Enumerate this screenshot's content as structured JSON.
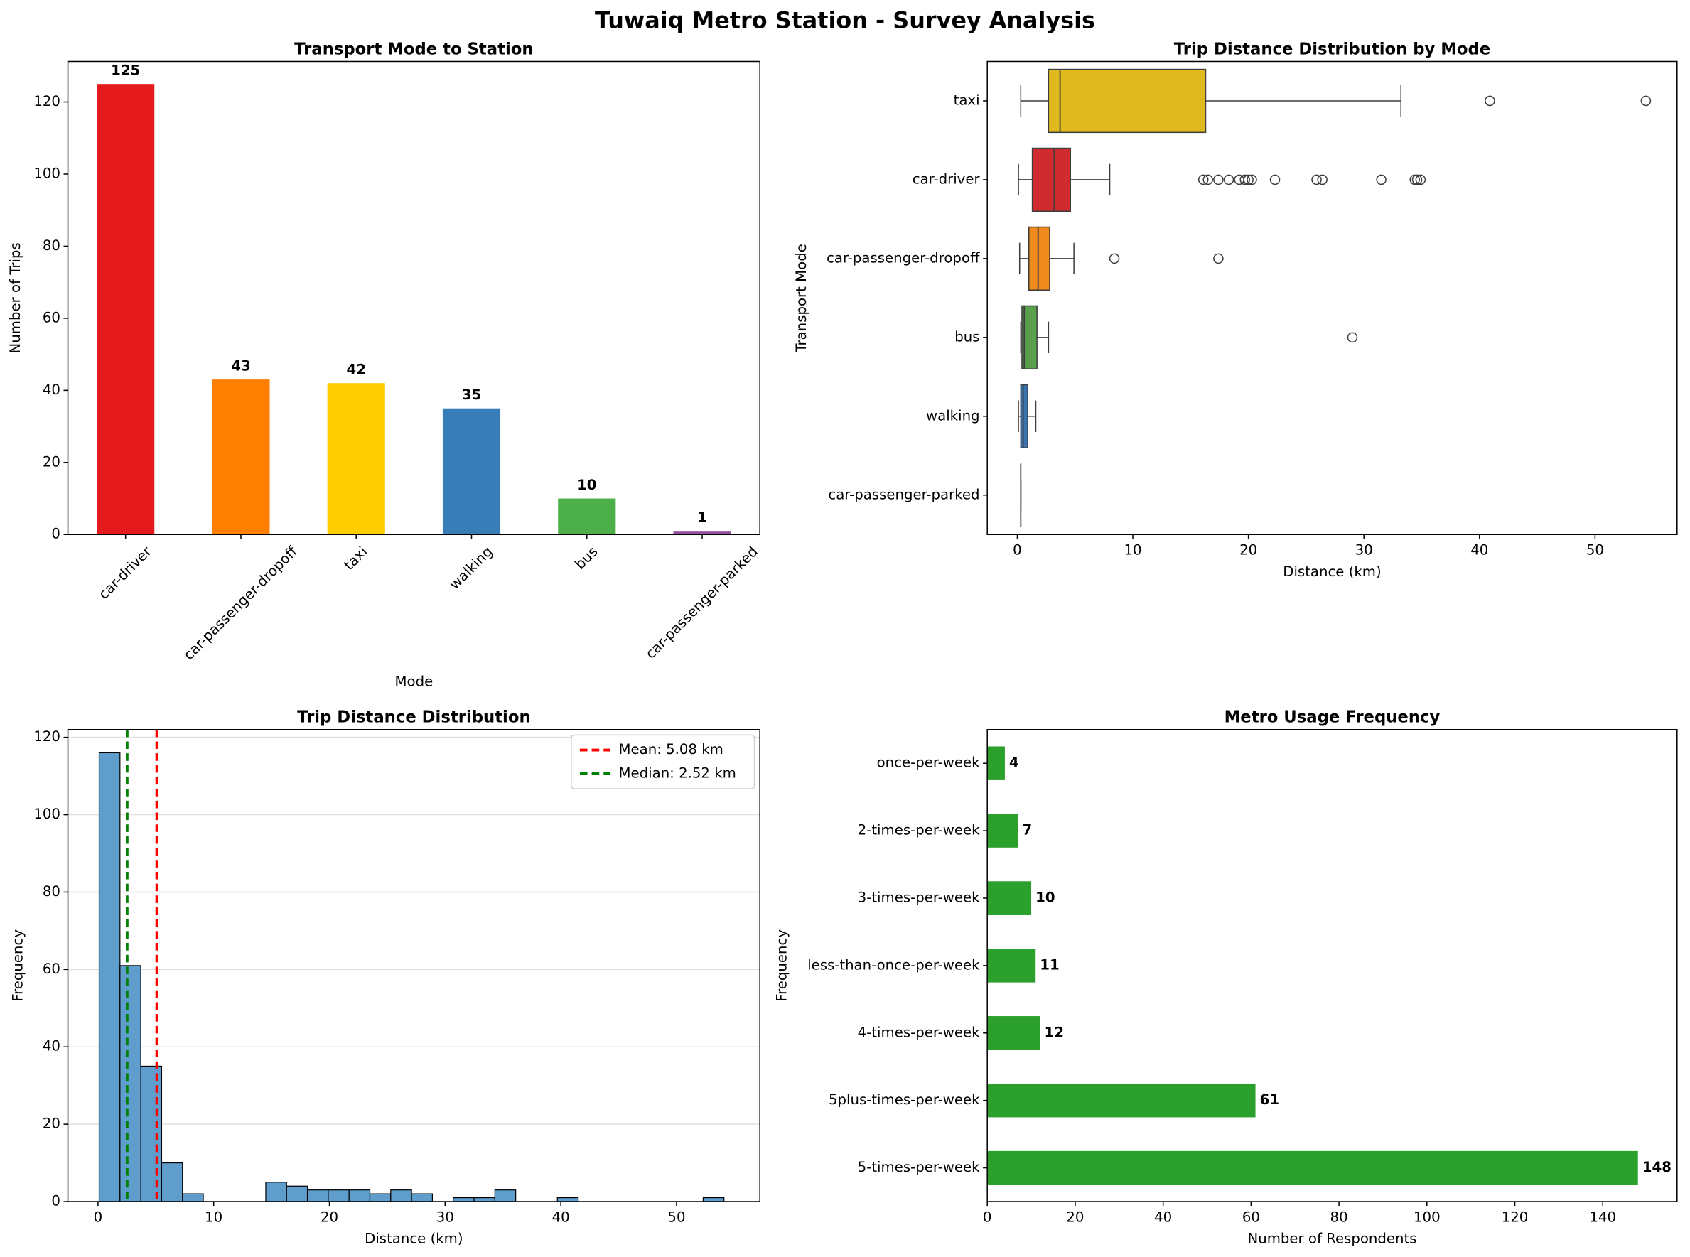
{
  "title": "Tuwaiq Metro Station - Survey Analysis",
  "chart_data": [
    {
      "type": "bar",
      "orientation": "vertical",
      "title": "Transport Mode to Station",
      "x_label": "Mode",
      "y_label": "Number of Trips",
      "categories": [
        "car-driver",
        "car-passenger-dropoff",
        "taxi",
        "walking",
        "bus",
        "car-passenger-parked"
      ],
      "values": [
        125,
        43,
        42,
        35,
        10,
        1
      ],
      "colors": [
        "#e41a1c",
        "#ff7f00",
        "#ffcc00",
        "#377eb8",
        "#4daf4a",
        "#984ea3"
      ],
      "ylim": [
        0,
        131.25
      ],
      "yticks": [
        0,
        20,
        40,
        60,
        80,
        100,
        120
      ],
      "grid": false
    },
    {
      "type": "box",
      "title": "Trip Distance Distribution by Mode",
      "x_label": "Distance (km)",
      "y_label": "Transport Mode",
      "categories": [
        "taxi",
        "car-driver",
        "car-passenger-dropoff",
        "bus",
        "walking",
        "car-passenger-parked"
      ],
      "colors": [
        "#e0b91f",
        "#d02b2e",
        "#ef8a1c",
        "#5aa04c",
        "#3a73ad",
        "#95509f"
      ],
      "boxes": [
        {
          "whislo": 0.3,
          "q1": 2.7,
          "med": 3.7,
          "q3": 16.3,
          "whishi": 33.2,
          "fliers": [
            40.9,
            54.4
          ]
        },
        {
          "whislo": 0.1,
          "q1": 1.3,
          "med": 3.2,
          "q3": 4.6,
          "whishi": 8.0,
          "fliers": [
            16.1,
            16.5,
            17.4,
            18.3,
            19.2,
            19.7,
            20.0,
            20.3,
            22.3,
            25.9,
            26.4,
            31.5,
            34.4,
            34.6,
            34.9
          ]
        },
        {
          "whislo": 0.2,
          "q1": 1.0,
          "med": 1.8,
          "q3": 2.8,
          "whishi": 4.9,
          "fliers": [
            8.4,
            17.4
          ]
        },
        {
          "whislo": 0.3,
          "q1": 0.4,
          "med": 0.6,
          "q3": 1.7,
          "whishi": 2.7,
          "fliers": [
            29.0
          ]
        },
        {
          "whislo": 0.1,
          "q1": 0.3,
          "med": 0.5,
          "q3": 0.9,
          "whishi": 1.6,
          "fliers": []
        },
        {
          "whislo": 0.3,
          "q1": 0.3,
          "med": 0.3,
          "q3": 0.3,
          "whishi": 0.3,
          "fliers": []
        }
      ],
      "xlim": [
        -2.6,
        57.1
      ],
      "xticks": [
        0,
        10,
        20,
        30,
        40,
        50
      ],
      "grid": false
    },
    {
      "type": "histogram",
      "title": "Trip Distance Distribution",
      "x_label": "Distance (km)",
      "y_label": "Frequency",
      "bins": [
        0.1,
        1.9,
        3.7,
        5.5,
        7.3,
        9.1,
        10.9,
        12.7,
        14.5,
        16.3,
        18.1,
        19.9,
        21.7,
        23.5,
        25.3,
        27.1,
        28.9,
        30.7,
        32.5,
        34.3,
        36.1,
        37.9,
        39.7,
        41.5,
        43.3,
        45.1,
        46.9,
        48.7,
        50.5,
        52.3,
        54.1
      ],
      "values": [
        116,
        61,
        35,
        10,
        2,
        0,
        0,
        0,
        5,
        4,
        3,
        3,
        3,
        2,
        3,
        2,
        0,
        1,
        1,
        3,
        0,
        0,
        1,
        0,
        0,
        0,
        0,
        0,
        0,
        1
      ],
      "color": "#5f9dcd",
      "vlines": [
        {
          "name": "Mean: 5.08 km",
          "value": 5.08,
          "color": "#ff0000"
        },
        {
          "name": "Median: 2.52 km",
          "value": 2.52,
          "color": "#008000"
        }
      ],
      "legend": "upper-right",
      "xlim": [
        -2.6,
        57.2
      ],
      "xticks": [
        0,
        10,
        20,
        30,
        40,
        50
      ],
      "ylim": [
        0,
        122
      ],
      "yticks": [
        0,
        20,
        40,
        60,
        80,
        100,
        120
      ],
      "grid": "y"
    },
    {
      "type": "bar",
      "orientation": "horizontal",
      "title": "Metro Usage Frequency",
      "x_label": "Number of Respondents",
      "y_label": "Frequency",
      "categories": [
        "5-times-per-week",
        "5plus-times-per-week",
        "4-times-per-week",
        "less-than-once-per-week",
        "3-times-per-week",
        "2-times-per-week",
        "once-per-week"
      ],
      "values": [
        148,
        61,
        12,
        11,
        10,
        7,
        4
      ],
      "color": "#2ca02c",
      "xlim": [
        0,
        156.9
      ],
      "xticks": [
        0,
        20,
        40,
        60,
        80,
        100,
        120,
        140
      ],
      "grid": false
    }
  ]
}
